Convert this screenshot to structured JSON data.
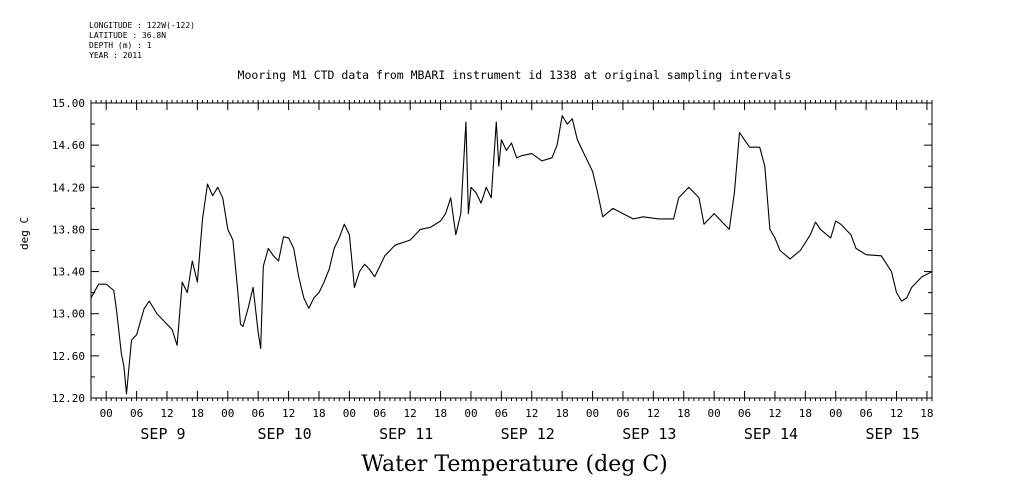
{
  "meta": {
    "longitude": "LONGITUDE : 122W(-122)",
    "latitude": "LATITUDE : 36.8N",
    "depth": "DEPTH (m) : 1",
    "year": "YEAR : 2011"
  },
  "chart_data": {
    "type": "line",
    "title": "Mooring M1 CTD data from MBARI instrument id 1338 at original sampling intervals",
    "xlabel": "Water Temperature (deg C)",
    "ylabel": "deg C",
    "ylim": [
      12.2,
      15.0
    ],
    "yticks": [
      "15.00",
      "14.60",
      "14.20",
      "13.80",
      "13.40",
      "13.00",
      "12.60",
      "12.20"
    ],
    "xlim_hours_label": "Sep 8 21:00 to Sep 15 19:00",
    "hour_ticks": [
      "00",
      "06",
      "12",
      "18",
      "00",
      "06",
      "12",
      "18",
      "00",
      "06",
      "12",
      "18",
      "00",
      "06",
      "12",
      "18",
      "00",
      "06",
      "12",
      "18",
      "00",
      "06",
      "12",
      "18",
      "00",
      "06",
      "12",
      "18"
    ],
    "day_labels": [
      "SEP  9",
      "SEP 10",
      "SEP 11",
      "SEP 12",
      "SEP 13",
      "SEP 14",
      "SEP 15"
    ],
    "grid": false,
    "series": [
      {
        "points": [
          [
            "2011-09-08T21:00",
            13.15
          ],
          [
            "2011-09-08T22:30",
            13.28
          ],
          [
            "2011-09-09T00:00",
            13.28
          ],
          [
            "2011-09-09T01:30",
            13.22
          ],
          [
            "2011-09-09T02:00",
            13.05
          ],
          [
            "2011-09-09T03:00",
            12.62
          ],
          [
            "2011-09-09T03:30",
            12.5
          ],
          [
            "2011-09-09T04:00",
            12.24
          ],
          [
            "2011-09-09T05:00",
            12.75
          ],
          [
            "2011-09-09T06:00",
            12.8
          ],
          [
            "2011-09-09T07:30",
            13.05
          ],
          [
            "2011-09-09T08:30",
            13.12
          ],
          [
            "2011-09-09T10:00",
            13.0
          ],
          [
            "2011-09-09T13:00",
            12.85
          ],
          [
            "2011-09-09T14:00",
            12.7
          ],
          [
            "2011-09-09T15:00",
            13.3
          ],
          [
            "2011-09-09T16:00",
            13.2
          ],
          [
            "2011-09-09T17:00",
            13.5
          ],
          [
            "2011-09-09T18:00",
            13.3
          ],
          [
            "2011-09-09T19:00",
            13.9
          ],
          [
            "2011-09-09T20:00",
            14.23
          ],
          [
            "2011-09-09T21:00",
            14.12
          ],
          [
            "2011-09-09T22:00",
            14.2
          ],
          [
            "2011-09-09T23:00",
            14.1
          ],
          [
            "2011-09-10T00:00",
            13.8
          ],
          [
            "2011-09-10T01:00",
            13.7
          ],
          [
            "2011-09-10T02:00",
            13.2
          ],
          [
            "2011-09-10T02:30",
            12.9
          ],
          [
            "2011-09-10T03:00",
            12.88
          ],
          [
            "2011-09-10T04:00",
            13.05
          ],
          [
            "2011-09-10T05:00",
            13.25
          ],
          [
            "2011-09-10T06:00",
            12.82
          ],
          [
            "2011-09-10T06:30",
            12.67
          ],
          [
            "2011-09-10T07:00",
            13.45
          ],
          [
            "2011-09-10T08:00",
            13.62
          ],
          [
            "2011-09-10T09:00",
            13.55
          ],
          [
            "2011-09-10T10:00",
            13.5
          ],
          [
            "2011-09-10T11:00",
            13.73
          ],
          [
            "2011-09-10T12:00",
            13.72
          ],
          [
            "2011-09-10T13:00",
            13.62
          ],
          [
            "2011-09-10T14:00",
            13.35
          ],
          [
            "2011-09-10T15:00",
            13.15
          ],
          [
            "2011-09-10T16:00",
            13.05
          ],
          [
            "2011-09-10T17:00",
            13.15
          ],
          [
            "2011-09-10T18:00",
            13.2
          ],
          [
            "2011-09-10T19:00",
            13.3
          ],
          [
            "2011-09-10T20:00",
            13.42
          ],
          [
            "2011-09-10T21:00",
            13.62
          ],
          [
            "2011-09-10T22:00",
            13.72
          ],
          [
            "2011-09-10T23:00",
            13.85
          ],
          [
            "2011-09-11T00:00",
            13.75
          ],
          [
            "2011-09-11T01:00",
            13.25
          ],
          [
            "2011-09-11T02:00",
            13.4
          ],
          [
            "2011-09-11T03:00",
            13.47
          ],
          [
            "2011-09-11T04:00",
            13.42
          ],
          [
            "2011-09-11T05:00",
            13.35
          ],
          [
            "2011-09-11T06:00",
            13.45
          ],
          [
            "2011-09-11T07:00",
            13.55
          ],
          [
            "2011-09-11T09:00",
            13.65
          ],
          [
            "2011-09-11T12:00",
            13.7
          ],
          [
            "2011-09-11T14:00",
            13.8
          ],
          [
            "2011-09-11T16:00",
            13.82
          ],
          [
            "2011-09-11T18:00",
            13.88
          ],
          [
            "2011-09-11T19:00",
            13.95
          ],
          [
            "2011-09-11T20:00",
            14.1
          ],
          [
            "2011-09-11T21:00",
            13.75
          ],
          [
            "2011-09-11T22:00",
            13.95
          ],
          [
            "2011-09-11T23:00",
            14.82
          ],
          [
            "2011-09-11T23:30",
            13.95
          ],
          [
            "2011-09-12T00:00",
            14.2
          ],
          [
            "2011-09-12T01:00",
            14.15
          ],
          [
            "2011-09-12T02:00",
            14.05
          ],
          [
            "2011-09-12T03:00",
            14.2
          ],
          [
            "2011-09-12T04:00",
            14.1
          ],
          [
            "2011-09-12T05:00",
            14.82
          ],
          [
            "2011-09-12T05:30",
            14.4
          ],
          [
            "2011-09-12T06:00",
            14.65
          ],
          [
            "2011-09-12T07:00",
            14.55
          ],
          [
            "2011-09-12T08:00",
            14.62
          ],
          [
            "2011-09-12T09:00",
            14.48
          ],
          [
            "2011-09-12T10:00",
            14.5
          ],
          [
            "2011-09-12T12:00",
            14.52
          ],
          [
            "2011-09-12T14:00",
            14.45
          ],
          [
            "2011-09-12T16:00",
            14.48
          ],
          [
            "2011-09-12T17:00",
            14.6
          ],
          [
            "2011-09-12T18:00",
            14.88
          ],
          [
            "2011-09-12T19:00",
            14.8
          ],
          [
            "2011-09-12T20:00",
            14.85
          ],
          [
            "2011-09-12T21:00",
            14.65
          ],
          [
            "2011-09-12T22:00",
            14.55
          ],
          [
            "2011-09-13T00:00",
            14.35
          ],
          [
            "2011-09-13T01:00",
            14.15
          ],
          [
            "2011-09-13T02:00",
            13.92
          ],
          [
            "2011-09-13T04:00",
            14.0
          ],
          [
            "2011-09-13T06:00",
            13.95
          ],
          [
            "2011-09-13T08:00",
            13.9
          ],
          [
            "2011-09-13T10:00",
            13.92
          ],
          [
            "2011-09-13T13:00",
            13.9
          ],
          [
            "2011-09-13T16:00",
            13.9
          ],
          [
            "2011-09-13T17:00",
            14.1
          ],
          [
            "2011-09-13T19:00",
            14.2
          ],
          [
            "2011-09-13T21:00",
            14.1
          ],
          [
            "2011-09-13T22:00",
            13.85
          ],
          [
            "2011-09-14T00:00",
            13.95
          ],
          [
            "2011-09-14T02:00",
            13.85
          ],
          [
            "2011-09-14T03:00",
            13.8
          ],
          [
            "2011-09-14T04:00",
            14.15
          ],
          [
            "2011-09-14T05:00",
            14.72
          ],
          [
            "2011-09-14T06:00",
            14.65
          ],
          [
            "2011-09-14T07:00",
            14.58
          ],
          [
            "2011-09-14T09:00",
            14.58
          ],
          [
            "2011-09-14T10:00",
            14.4
          ],
          [
            "2011-09-14T11:00",
            13.8
          ],
          [
            "2011-09-14T12:00",
            13.72
          ],
          [
            "2011-09-14T13:00",
            13.6
          ],
          [
            "2011-09-14T15:00",
            13.52
          ],
          [
            "2011-09-14T17:00",
            13.6
          ],
          [
            "2011-09-14T19:00",
            13.75
          ],
          [
            "2011-09-14T20:00",
            13.87
          ],
          [
            "2011-09-14T21:00",
            13.8
          ],
          [
            "2011-09-14T23:00",
            13.72
          ],
          [
            "2011-09-15T00:00",
            13.88
          ],
          [
            "2011-09-15T01:00",
            13.85
          ],
          [
            "2011-09-15T03:00",
            13.75
          ],
          [
            "2011-09-15T04:00",
            13.62
          ],
          [
            "2011-09-15T06:00",
            13.56
          ],
          [
            "2011-09-15T09:00",
            13.55
          ],
          [
            "2011-09-15T11:00",
            13.4
          ],
          [
            "2011-09-15T12:00",
            13.2
          ],
          [
            "2011-09-15T13:00",
            13.12
          ],
          [
            "2011-09-15T14:00",
            13.15
          ],
          [
            "2011-09-15T15:00",
            13.25
          ],
          [
            "2011-09-15T17:00",
            13.35
          ],
          [
            "2011-09-15T19:00",
            13.4
          ]
        ]
      }
    ]
  }
}
